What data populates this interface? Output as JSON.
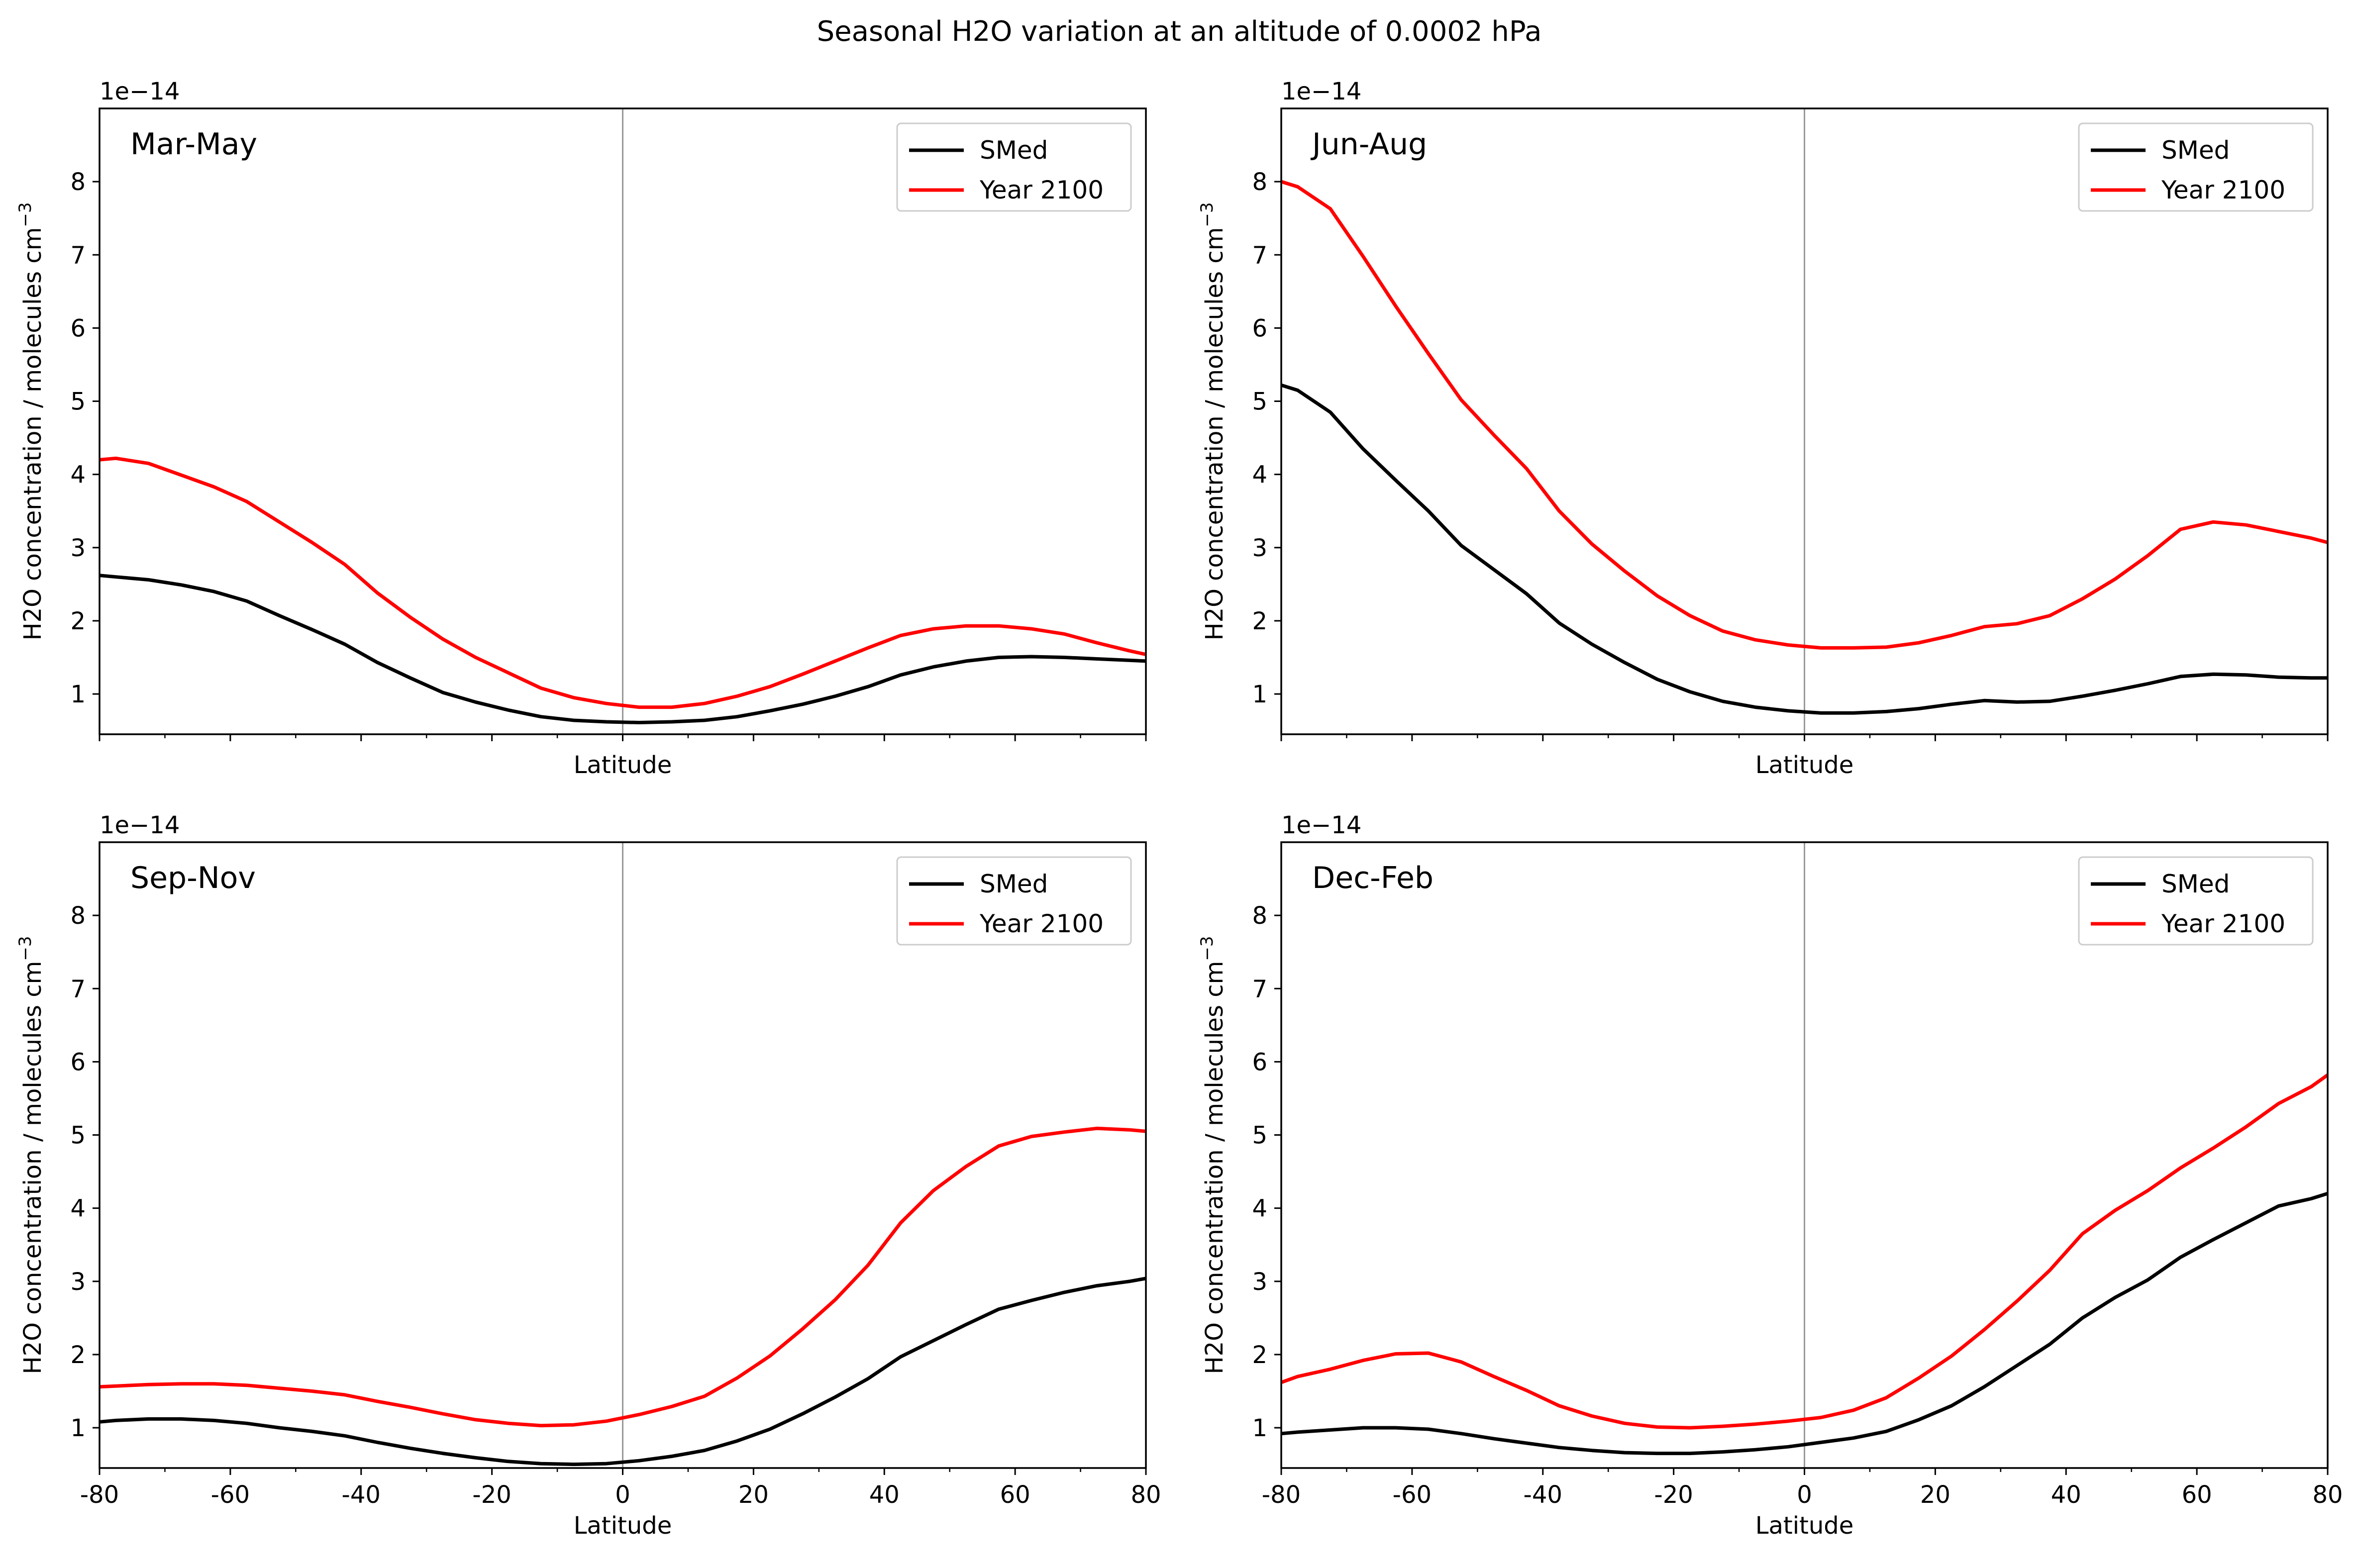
{
  "title": "Seasonal H2O variation at an altitude of 0.0002 hPa",
  "colors": {
    "smed": "#000000",
    "y2100": "#ff0000",
    "zeroline": "#999999"
  },
  "chart_data": [
    {
      "type": "line",
      "panel_label": "Mar-May",
      "xlabel": "Latitude",
      "ylabel_main": "H2O concentration / molecules cm",
      "ylabel_sup": "−3",
      "offset_text": "1e−14",
      "xlim": [
        -80,
        80
      ],
      "ylim": [
        0.45,
        9.0
      ],
      "xticks": [
        -80,
        -60,
        -40,
        -20,
        0,
        20,
        40,
        60,
        80
      ],
      "xtick_labels": [],
      "yticks": [
        1,
        2,
        3,
        4,
        5,
        6,
        7,
        8
      ],
      "ytick_labels": [
        "1",
        "2",
        "3",
        "4",
        "5",
        "6",
        "7",
        "8"
      ],
      "legend": {
        "location": "top-right",
        "entries": [
          "SMed",
          "Year 2100"
        ]
      },
      "series": [
        {
          "name": "SMed",
          "x": [
            -80,
            -77.5,
            -72.5,
            -67.5,
            -62.5,
            -57.5,
            -52.5,
            -47.5,
            -42.5,
            -37.5,
            -32.5,
            -27.5,
            -22.5,
            -17.5,
            -12.5,
            -7.5,
            -2.5,
            2.5,
            7.5,
            12.5,
            17.5,
            22.5,
            27.5,
            32.5,
            37.5,
            42.5,
            47.5,
            52.5,
            57.5,
            62.5,
            67.5,
            72.5,
            77.5,
            80
          ],
          "y": [
            2.62,
            2.6,
            2.56,
            2.49,
            2.4,
            2.27,
            2.07,
            1.88,
            1.68,
            1.43,
            1.22,
            1.02,
            0.89,
            0.78,
            0.69,
            0.64,
            0.62,
            0.61,
            0.62,
            0.64,
            0.69,
            0.77,
            0.86,
            0.97,
            1.1,
            1.26,
            1.37,
            1.45,
            1.5,
            1.51,
            1.5,
            1.48,
            1.46,
            1.45
          ]
        },
        {
          "name": "Year 2100",
          "x": [
            -80,
            -77.5,
            -72.5,
            -67.5,
            -62.5,
            -57.5,
            -52.5,
            -47.5,
            -42.5,
            -37.5,
            -32.5,
            -27.5,
            -22.5,
            -17.5,
            -12.5,
            -7.5,
            -2.5,
            2.5,
            7.5,
            12.5,
            17.5,
            22.5,
            27.5,
            32.5,
            37.5,
            42.5,
            47.5,
            52.5,
            57.5,
            62.5,
            67.5,
            72.5,
            77.5,
            80
          ],
          "y": [
            4.2,
            4.22,
            4.15,
            3.99,
            3.83,
            3.63,
            3.35,
            3.07,
            2.77,
            2.38,
            2.05,
            1.75,
            1.5,
            1.29,
            1.08,
            0.95,
            0.87,
            0.82,
            0.82,
            0.87,
            0.97,
            1.1,
            1.27,
            1.45,
            1.63,
            1.8,
            1.89,
            1.93,
            1.93,
            1.89,
            1.82,
            1.7,
            1.59,
            1.54
          ]
        }
      ]
    },
    {
      "type": "line",
      "panel_label": "Jun-Aug",
      "xlabel": "Latitude",
      "ylabel_main": "H2O concentration / molecules cm",
      "ylabel_sup": "−3",
      "offset_text": "1e−14",
      "xlim": [
        -80,
        80
      ],
      "ylim": [
        0.45,
        9.0
      ],
      "xticks": [
        -80,
        -60,
        -40,
        -20,
        0,
        20,
        40,
        60,
        80
      ],
      "xtick_labels": [],
      "yticks": [
        1,
        2,
        3,
        4,
        5,
        6,
        7,
        8
      ],
      "ytick_labels": [
        "1",
        "2",
        "3",
        "4",
        "5",
        "6",
        "7",
        "8"
      ],
      "legend": {
        "location": "top-right",
        "entries": [
          "SMed",
          "Year 2100"
        ]
      },
      "series": [
        {
          "name": "SMed",
          "x": [
            -80,
            -77.5,
            -72.5,
            -67.5,
            -62.5,
            -57.5,
            -52.5,
            -47.5,
            -42.5,
            -37.5,
            -32.5,
            -27.5,
            -22.5,
            -17.5,
            -12.5,
            -7.5,
            -2.5,
            2.5,
            7.5,
            12.5,
            17.5,
            22.5,
            27.5,
            32.5,
            37.5,
            42.5,
            47.5,
            52.5,
            57.5,
            62.5,
            67.5,
            72.5,
            77.5,
            80
          ],
          "y": [
            5.22,
            5.15,
            4.85,
            4.35,
            3.92,
            3.5,
            3.03,
            2.7,
            2.37,
            1.97,
            1.68,
            1.43,
            1.2,
            1.03,
            0.9,
            0.82,
            0.77,
            0.74,
            0.74,
            0.76,
            0.8,
            0.86,
            0.91,
            0.89,
            0.9,
            0.97,
            1.05,
            1.14,
            1.24,
            1.27,
            1.26,
            1.23,
            1.22,
            1.22
          ]
        },
        {
          "name": "Year 2100",
          "x": [
            -80,
            -77.5,
            -72.5,
            -67.5,
            -62.5,
            -57.5,
            -52.5,
            -47.5,
            -42.5,
            -37.5,
            -32.5,
            -27.5,
            -22.5,
            -17.5,
            -12.5,
            -7.5,
            -2.5,
            2.5,
            7.5,
            12.5,
            17.5,
            22.5,
            27.5,
            32.5,
            37.5,
            42.5,
            47.5,
            52.5,
            57.5,
            62.5,
            67.5,
            72.5,
            77.5,
            80
          ],
          "y": [
            8.0,
            7.93,
            7.63,
            6.98,
            6.3,
            5.65,
            5.02,
            4.54,
            4.08,
            3.5,
            3.05,
            2.68,
            2.34,
            2.07,
            1.86,
            1.74,
            1.67,
            1.63,
            1.63,
            1.64,
            1.7,
            1.8,
            1.92,
            1.96,
            2.07,
            2.3,
            2.57,
            2.89,
            3.25,
            3.35,
            3.31,
            3.22,
            3.13,
            3.07
          ]
        }
      ]
    },
    {
      "type": "line",
      "panel_label": "Sep-Nov",
      "xlabel": "Latitude",
      "ylabel_main": "H2O concentration / molecules cm",
      "ylabel_sup": "−3",
      "offset_text": "1e−14",
      "xlim": [
        -80,
        80
      ],
      "ylim": [
        0.45,
        9.0
      ],
      "xticks": [
        -80,
        -60,
        -40,
        -20,
        0,
        20,
        40,
        60,
        80
      ],
      "xtick_labels": [
        "-80",
        "-60",
        "-40",
        "-20",
        "0",
        "20",
        "40",
        "60",
        "80"
      ],
      "yticks": [
        1,
        2,
        3,
        4,
        5,
        6,
        7,
        8
      ],
      "ytick_labels": [
        "1",
        "2",
        "3",
        "4",
        "5",
        "6",
        "7",
        "8"
      ],
      "legend": {
        "location": "top-right",
        "entries": [
          "SMed",
          "Year 2100"
        ]
      },
      "series": [
        {
          "name": "SMed",
          "x": [
            -80,
            -77.5,
            -72.5,
            -67.5,
            -62.5,
            -57.5,
            -52.5,
            -47.5,
            -42.5,
            -37.5,
            -32.5,
            -27.5,
            -22.5,
            -17.5,
            -12.5,
            -7.5,
            -2.5,
            2.5,
            7.5,
            12.5,
            17.5,
            22.5,
            27.5,
            32.5,
            37.5,
            42.5,
            47.5,
            52.5,
            57.5,
            62.5,
            67.5,
            72.5,
            77.5,
            80
          ],
          "y": [
            1.08,
            1.1,
            1.12,
            1.12,
            1.1,
            1.06,
            1.0,
            0.95,
            0.89,
            0.8,
            0.72,
            0.65,
            0.59,
            0.54,
            0.51,
            0.5,
            0.51,
            0.55,
            0.61,
            0.69,
            0.82,
            0.98,
            1.19,
            1.42,
            1.67,
            1.97,
            2.19,
            2.41,
            2.62,
            2.74,
            2.85,
            2.94,
            3.0,
            3.04
          ]
        },
        {
          "name": "Year 2100",
          "x": [
            -80,
            -77.5,
            -72.5,
            -67.5,
            -62.5,
            -57.5,
            -52.5,
            -47.5,
            -42.5,
            -37.5,
            -32.5,
            -27.5,
            -22.5,
            -17.5,
            -12.5,
            -7.5,
            -2.5,
            2.5,
            7.5,
            12.5,
            17.5,
            22.5,
            27.5,
            32.5,
            37.5,
            42.5,
            47.5,
            52.5,
            57.5,
            62.5,
            67.5,
            72.5,
            77.5,
            80
          ],
          "y": [
            1.56,
            1.57,
            1.59,
            1.6,
            1.6,
            1.58,
            1.54,
            1.5,
            1.45,
            1.36,
            1.28,
            1.19,
            1.11,
            1.06,
            1.03,
            1.04,
            1.09,
            1.18,
            1.29,
            1.43,
            1.68,
            1.98,
            2.35,
            2.75,
            3.22,
            3.8,
            4.24,
            4.57,
            4.85,
            4.98,
            5.04,
            5.09,
            5.07,
            5.05
          ]
        }
      ]
    },
    {
      "type": "line",
      "panel_label": "Dec-Feb",
      "xlabel": "Latitude",
      "ylabel_main": "H2O concentration / molecules cm",
      "ylabel_sup": "−3",
      "offset_text": "1e−14",
      "xlim": [
        -80,
        80
      ],
      "ylim": [
        0.45,
        9.0
      ],
      "xticks": [
        -80,
        -60,
        -40,
        -20,
        0,
        20,
        40,
        60,
        80
      ],
      "xtick_labels": [
        "-80",
        "-60",
        "-40",
        "-20",
        "0",
        "20",
        "40",
        "60",
        "80"
      ],
      "yticks": [
        1,
        2,
        3,
        4,
        5,
        6,
        7,
        8
      ],
      "ytick_labels": [
        "1",
        "2",
        "3",
        "4",
        "5",
        "6",
        "7",
        "8"
      ],
      "legend": {
        "location": "top-right",
        "entries": [
          "SMed",
          "Year 2100"
        ]
      },
      "series": [
        {
          "name": "SMed",
          "x": [
            -80,
            -77.5,
            -72.5,
            -67.5,
            -62.5,
            -57.5,
            -52.5,
            -47.5,
            -42.5,
            -37.5,
            -32.5,
            -27.5,
            -22.5,
            -17.5,
            -12.5,
            -7.5,
            -2.5,
            2.5,
            7.5,
            12.5,
            17.5,
            22.5,
            27.5,
            32.5,
            37.5,
            42.5,
            47.5,
            52.5,
            57.5,
            62.5,
            67.5,
            72.5,
            77.5,
            80
          ],
          "y": [
            0.92,
            0.94,
            0.97,
            1.0,
            1.0,
            0.98,
            0.92,
            0.85,
            0.79,
            0.73,
            0.69,
            0.66,
            0.65,
            0.65,
            0.67,
            0.7,
            0.74,
            0.8,
            0.86,
            0.95,
            1.11,
            1.3,
            1.56,
            1.85,
            2.14,
            2.5,
            2.78,
            3.02,
            3.33,
            3.57,
            3.8,
            4.03,
            4.13,
            4.2
          ]
        },
        {
          "name": "Year 2100",
          "x": [
            -80,
            -77.5,
            -72.5,
            -67.5,
            -62.5,
            -57.5,
            -52.5,
            -47.5,
            -42.5,
            -37.5,
            -32.5,
            -27.5,
            -22.5,
            -17.5,
            -12.5,
            -7.5,
            -2.5,
            2.5,
            7.5,
            12.5,
            17.5,
            22.5,
            27.5,
            32.5,
            37.5,
            42.5,
            47.5,
            52.5,
            57.5,
            62.5,
            67.5,
            72.5,
            77.5,
            80
          ],
          "y": [
            1.62,
            1.7,
            1.8,
            1.92,
            2.01,
            2.02,
            1.9,
            1.7,
            1.51,
            1.3,
            1.16,
            1.06,
            1.01,
            1.0,
            1.02,
            1.05,
            1.09,
            1.14,
            1.24,
            1.41,
            1.68,
            1.98,
            2.34,
            2.73,
            3.15,
            3.65,
            3.97,
            4.24,
            4.55,
            4.82,
            5.11,
            5.43,
            5.66,
            5.82
          ]
        }
      ]
    }
  ]
}
